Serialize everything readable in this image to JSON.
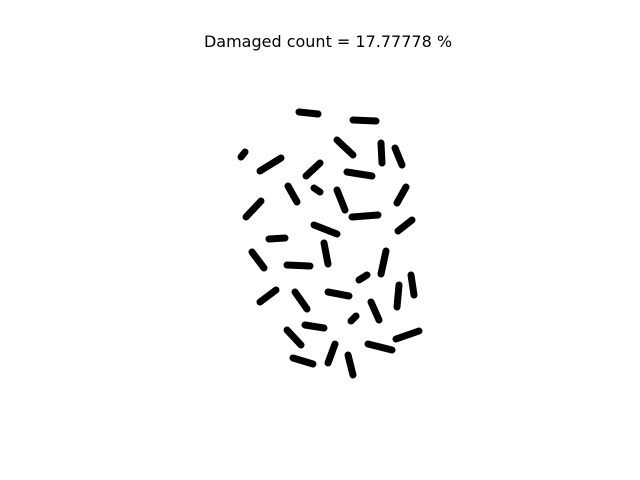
{
  "figure": {
    "title": "Damaged count = 17.77778 %",
    "background_color": "#ffffff",
    "grain_color": "#000000"
  }
}
